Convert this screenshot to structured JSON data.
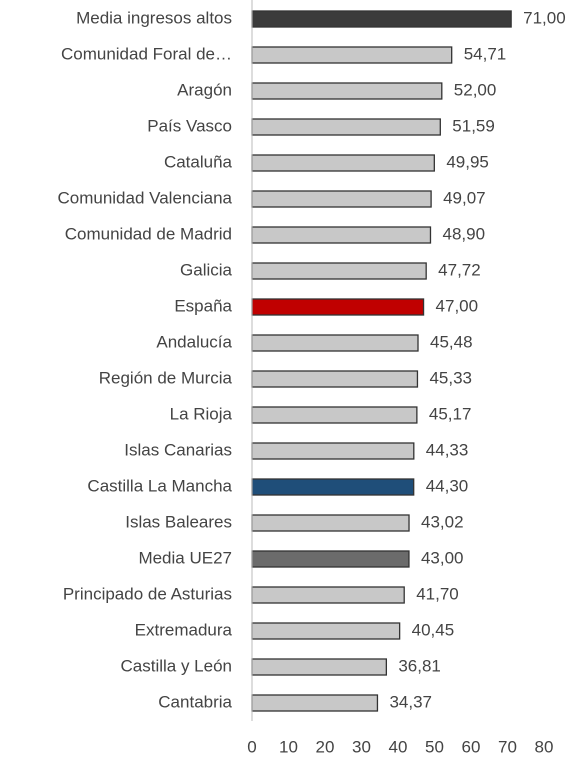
{
  "chart_data": {
    "type": "barh",
    "categories": [
      "Media ingresos altos",
      "Comunidad Foral de…",
      "Aragón",
      "País Vasco",
      "Cataluña",
      "Comunidad Valenciana",
      "Comunidad de Madrid",
      "Galicia",
      "España",
      "Andalucía",
      "Región de Murcia",
      "La Rioja",
      "Islas Canarias",
      "Castilla La Mancha",
      "Islas Baleares",
      "Media UE27",
      "Principado de Asturias",
      "Extremadura",
      "Castilla y León",
      "Cantabria"
    ],
    "values": [
      71.0,
      54.71,
      52.0,
      51.59,
      49.95,
      49.07,
      48.9,
      47.72,
      47.0,
      45.48,
      45.33,
      45.17,
      44.33,
      44.3,
      43.02,
      43.0,
      41.7,
      40.45,
      36.81,
      34.37
    ],
    "value_labels": [
      "71,00",
      "54,71",
      "52,00",
      "51,59",
      "49,95",
      "49,07",
      "48,90",
      "47,72",
      "47,00",
      "45,48",
      "45,33",
      "45,17",
      "44,33",
      "44,30",
      "43,02",
      "43,00",
      "41,70",
      "40,45",
      "36,81",
      "34,37"
    ],
    "colors": [
      "#3b3b3b",
      "#c8c8c8",
      "#c8c8c8",
      "#c8c8c8",
      "#c8c8c8",
      "#c8c8c8",
      "#c8c8c8",
      "#c8c8c8",
      "#c00000",
      "#c8c8c8",
      "#c8c8c8",
      "#c8c8c8",
      "#c8c8c8",
      "#1f4e79",
      "#c8c8c8",
      "#6b6b6b",
      "#c8c8c8",
      "#c8c8c8",
      "#c8c8c8",
      "#c8c8c8"
    ],
    "xlim": [
      0,
      80
    ],
    "xticks": [
      0,
      10,
      20,
      30,
      40,
      50,
      60,
      70,
      80
    ]
  }
}
